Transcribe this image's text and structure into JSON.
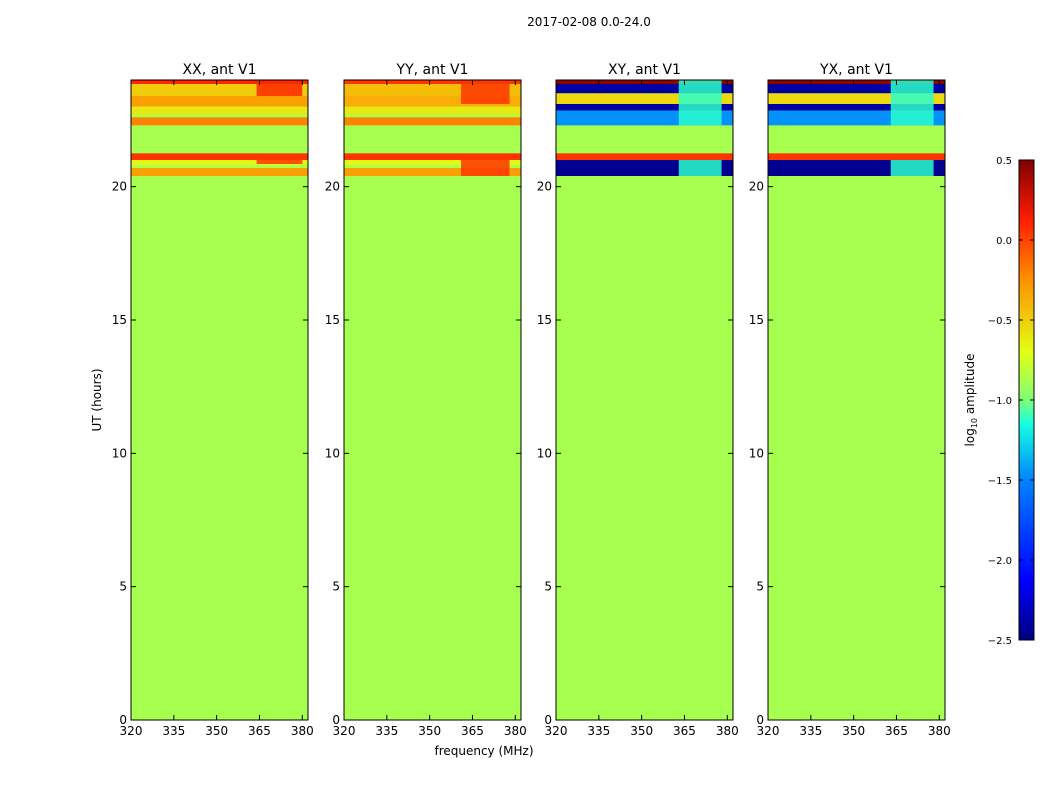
{
  "suptitle": "2017-02-08 0.0-24.0",
  "colors": {
    "background_fill": "#80ff77",
    "axes_edge": "#000000",
    "colormap": [
      "#00007f",
      "#0000ff",
      "#0080ff",
      "#15ffe1",
      "#80ff77",
      "#e2ff15",
      "#ff9100",
      "#ff1e00",
      "#7f0000"
    ]
  },
  "chart_data": {
    "type": "heatmap",
    "ylabel": "UT (hours)",
    "xlabel": "frequency (MHz)",
    "xlim": [
      320,
      382
    ],
    "ylim": [
      0,
      24
    ],
    "xticks": [
      320,
      335,
      350,
      365,
      380
    ],
    "yticks": [
      0,
      5,
      10,
      15,
      20
    ],
    "panels": [
      {
        "title": "XX, ant V1",
        "background_value": -0.85,
        "bands": [
          {
            "t0": 23.85,
            "t1": 24.0,
            "v": 0.1
          },
          {
            "t0": 23.4,
            "t1": 23.85,
            "v": -0.45
          },
          {
            "t0": 23.0,
            "t1": 23.4,
            "v": -0.3
          },
          {
            "t0": 22.7,
            "t1": 23.0,
            "v": -0.55
          },
          {
            "t0": 22.3,
            "t1": 22.6,
            "v": -0.2
          },
          {
            "t0": 21.0,
            "t1": 21.25,
            "v": 0.05
          },
          {
            "t0": 20.8,
            "t1": 21.0,
            "v": -0.6
          },
          {
            "t0": 20.4,
            "t1": 20.7,
            "v": -0.3
          }
        ],
        "patches": [
          {
            "f0": 364,
            "f1": 380,
            "t0": 23.4,
            "t1": 24.0,
            "v": 0.1
          },
          {
            "f0": 364,
            "f1": 380,
            "t0": 20.85,
            "t1": 21.0,
            "v": 0.05
          }
        ]
      },
      {
        "title": "YY, ant V1",
        "background_value": -0.85,
        "bands": [
          {
            "t0": 23.85,
            "t1": 24.0,
            "v": 0.05
          },
          {
            "t0": 23.4,
            "t1": 23.85,
            "v": -0.4
          },
          {
            "t0": 23.0,
            "t1": 23.4,
            "v": -0.35
          },
          {
            "t0": 22.7,
            "t1": 23.0,
            "v": -0.55
          },
          {
            "t0": 22.3,
            "t1": 22.6,
            "v": -0.2
          },
          {
            "t0": 21.0,
            "t1": 21.25,
            "v": 0.05
          },
          {
            "t0": 20.8,
            "t1": 21.0,
            "v": -0.6
          },
          {
            "t0": 20.4,
            "t1": 20.7,
            "v": -0.3
          }
        ],
        "patches": [
          {
            "f0": 361,
            "f1": 378,
            "t0": 23.1,
            "t1": 24.0,
            "v": 0.05
          },
          {
            "f0": 361,
            "f1": 378,
            "t0": 20.4,
            "t1": 21.0,
            "v": 0.05
          }
        ]
      },
      {
        "title": "XY, ant V1",
        "background_value": -0.85,
        "bands": [
          {
            "t0": 23.85,
            "t1": 24.0,
            "v": 0.45
          },
          {
            "t0": 23.5,
            "t1": 23.85,
            "v": -2.4
          },
          {
            "t0": 23.1,
            "t1": 23.5,
            "v": -0.5
          },
          {
            "t0": 22.85,
            "t1": 23.1,
            "v": -2.4
          },
          {
            "t0": 22.3,
            "t1": 22.85,
            "v": -1.7
          },
          {
            "t0": 21.25,
            "t1": 22.2,
            "v": -0.85
          },
          {
            "t0": 21.0,
            "t1": 21.25,
            "v": 0.05
          },
          {
            "t0": 20.4,
            "t1": 21.0,
            "v": -2.45
          }
        ],
        "patches": [
          {
            "f0": 363,
            "f1": 378,
            "t0": 22.3,
            "t1": 24.0,
            "v": -1.3
          },
          {
            "f0": 363,
            "f1": 378,
            "t0": 20.4,
            "t1": 21.0,
            "v": -1.3
          }
        ]
      },
      {
        "title": "YX, ant V1",
        "background_value": -0.85,
        "bands": [
          {
            "t0": 23.85,
            "t1": 24.0,
            "v": 0.45
          },
          {
            "t0": 23.5,
            "t1": 23.85,
            "v": -2.4
          },
          {
            "t0": 23.1,
            "t1": 23.5,
            "v": -0.5
          },
          {
            "t0": 22.85,
            "t1": 23.1,
            "v": -2.4
          },
          {
            "t0": 22.3,
            "t1": 22.85,
            "v": -1.7
          },
          {
            "t0": 21.25,
            "t1": 22.2,
            "v": -0.85
          },
          {
            "t0": 21.0,
            "t1": 21.25,
            "v": 0.05
          },
          {
            "t0": 20.4,
            "t1": 21.0,
            "v": -2.45
          }
        ],
        "patches": [
          {
            "f0": 363,
            "f1": 378,
            "t0": 22.3,
            "t1": 24.0,
            "v": -1.3
          },
          {
            "f0": 363,
            "f1": 378,
            "t0": 20.4,
            "t1": 21.0,
            "v": -1.3
          }
        ]
      }
    ],
    "colorbar": {
      "label_main": "log",
      "label_sub": "10",
      "label_rest": " amplitude",
      "vmin": -2.5,
      "vmax": 0.5,
      "ticks": [
        0.5,
        0.0,
        -0.5,
        -1.0,
        -1.5,
        -2.0,
        -2.5
      ],
      "tick_labels": [
        "0.5",
        "0.0",
        "−0.5",
        "−1.0",
        "−1.5",
        "−2.0",
        "−2.5"
      ]
    }
  }
}
